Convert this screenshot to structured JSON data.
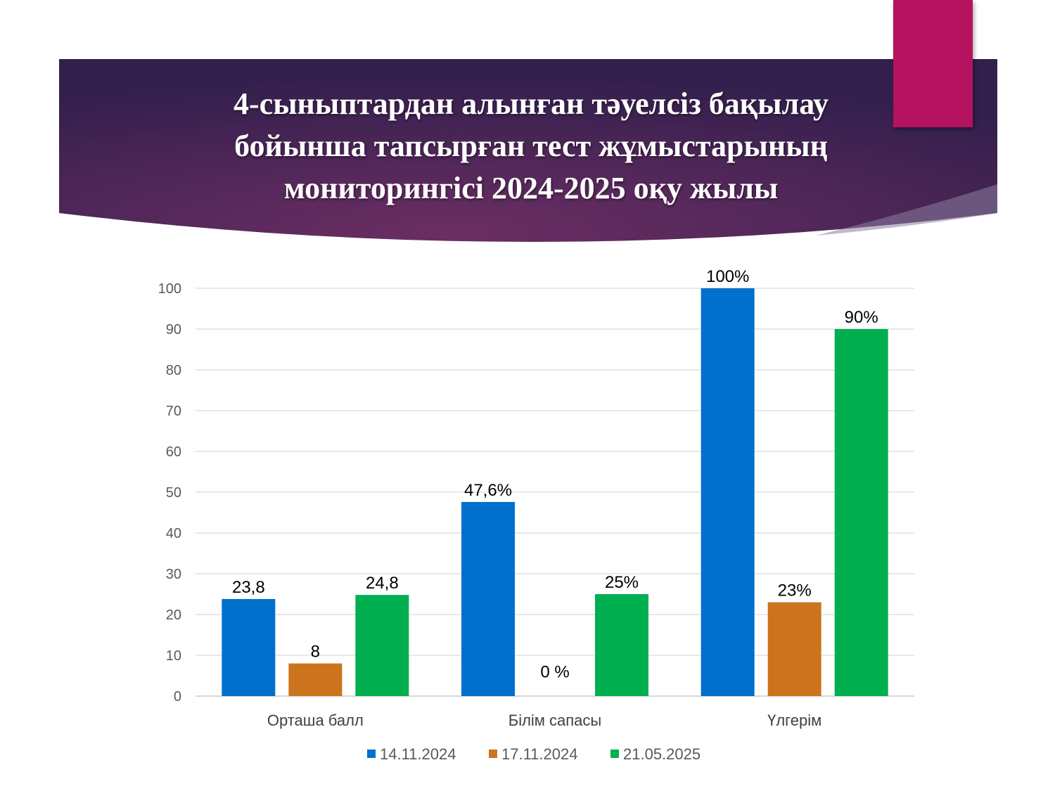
{
  "slide": {
    "title_lines": [
      "4-сыныптардан алынған тәуелсіз бақылау",
      "бойынша тапсырған тест жұмыстарының",
      "мониторингісі 2024-2025 оқу жылы"
    ],
    "banner_colors": [
      "#331f4d",
      "#6b2e63",
      "#2e2448"
    ],
    "accent_color": "#b5135f"
  },
  "chart_data": {
    "type": "bar",
    "categories": [
      "Орташа балл",
      "Білім сапасы",
      "Үлгерім"
    ],
    "series": [
      {
        "name": "14.11.2024",
        "color": "#0070cc",
        "values": [
          23.8,
          47.6,
          100
        ],
        "labels": [
          "23,8",
          "47,6%",
          "100%"
        ]
      },
      {
        "name": "17.11.2024",
        "color": "#cc731d",
        "values": [
          8,
          0,
          23
        ],
        "labels": [
          "8",
          "0 %",
          "23%"
        ]
      },
      {
        "name": "21.05.2025",
        "color": "#00b050",
        "values": [
          24.8,
          25,
          90
        ],
        "labels": [
          "24,8",
          "25%",
          "90%"
        ]
      }
    ],
    "ylim": [
      0,
      100
    ],
    "yticks": [
      0,
      10,
      20,
      30,
      40,
      50,
      60,
      70,
      80,
      90,
      100
    ],
    "grid": true,
    "legend_position": "bottom"
  }
}
